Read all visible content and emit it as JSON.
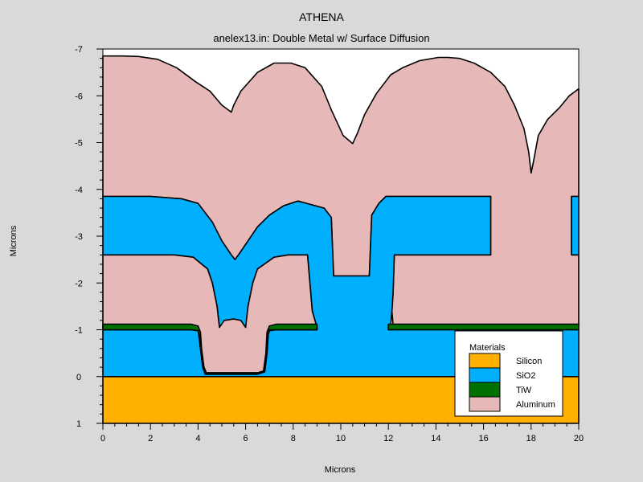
{
  "chart_data": {
    "type": "area",
    "title": "ATHENA",
    "subtitle": "anelex13.in: Double Metal w/ Surface Diffusion",
    "xlabel": "Microns",
    "ylabel": "Microns",
    "xlim": [
      0,
      20
    ],
    "ylim": [
      1,
      -7
    ],
    "y_axis_inverted": true,
    "x_ticks": [
      0,
      2,
      4,
      6,
      8,
      10,
      12,
      14,
      16,
      18,
      20
    ],
    "y_ticks": [
      1,
      0,
      -1,
      -2,
      -3,
      -4,
      -5,
      -6,
      -7
    ],
    "legend": {
      "title": "Materials",
      "position": "bottom-right",
      "entries": [
        {
          "label": "Silicon",
          "color": "#ffb000"
        },
        {
          "label": "SiO2",
          "color": "#00b0ff"
        },
        {
          "label": "TiW",
          "color": "#007000"
        },
        {
          "label": "Aluminum",
          "color": "#e6b8b8"
        }
      ]
    },
    "regions": [
      {
        "material": "Aluminum",
        "note": "Top Al layer (upper surface profile)",
        "polygon": [
          [
            0,
            -6.85
          ],
          [
            0.8,
            -6.85
          ],
          [
            1.5,
            -6.84
          ],
          [
            2.3,
            -6.78
          ],
          [
            3.1,
            -6.6
          ],
          [
            3.9,
            -6.3
          ],
          [
            4.5,
            -6.1
          ],
          [
            5.0,
            -5.8
          ],
          [
            5.4,
            -5.65
          ],
          [
            5.5,
            -5.8
          ],
          [
            5.8,
            -6.1
          ],
          [
            6.5,
            -6.5
          ],
          [
            7.2,
            -6.7
          ],
          [
            7.9,
            -6.7
          ],
          [
            8.5,
            -6.6
          ],
          [
            9.2,
            -6.2
          ],
          [
            9.6,
            -5.7
          ],
          [
            10.1,
            -5.15
          ],
          [
            10.5,
            -4.98
          ],
          [
            10.7,
            -5.2
          ],
          [
            11.0,
            -5.6
          ],
          [
            11.5,
            -6.05
          ],
          [
            12.1,
            -6.45
          ],
          [
            12.6,
            -6.6
          ],
          [
            13.3,
            -6.75
          ],
          [
            14.1,
            -6.82
          ],
          [
            14.5,
            -6.82
          ],
          [
            15.0,
            -6.8
          ],
          [
            15.6,
            -6.7
          ],
          [
            16.3,
            -6.5
          ],
          [
            16.9,
            -6.2
          ],
          [
            17.3,
            -5.8
          ],
          [
            17.7,
            -5.3
          ],
          [
            17.9,
            -4.8
          ],
          [
            18.0,
            -4.35
          ],
          [
            18.1,
            -4.6
          ],
          [
            18.3,
            -5.15
          ],
          [
            18.7,
            -5.5
          ],
          [
            19.2,
            -5.75
          ],
          [
            19.6,
            -6.0
          ],
          [
            20.0,
            -6.15
          ],
          [
            20,
            -3.85
          ],
          [
            19.7,
            -3.85
          ],
          [
            19.7,
            -2.6
          ],
          [
            20,
            -2.6
          ],
          [
            20,
            -1.1
          ],
          [
            12.2,
            -1.1
          ],
          [
            12.15,
            -1.4
          ],
          [
            12.2,
            -1.8
          ],
          [
            12.25,
            -2.6
          ],
          [
            12.3,
            -2.6
          ],
          [
            16.3,
            -2.6
          ],
          [
            16.3,
            -3.85
          ],
          [
            11.9,
            -3.85
          ],
          [
            11.6,
            -3.7
          ],
          [
            11.3,
            -3.45
          ],
          [
            11.2,
            -2.15
          ],
          [
            10.2,
            -2.15
          ],
          [
            9.7,
            -2.15
          ],
          [
            9.6,
            -3.4
          ],
          [
            9.3,
            -3.6
          ],
          [
            8.2,
            -3.75
          ],
          [
            7.6,
            -3.65
          ],
          [
            7.0,
            -3.45
          ],
          [
            6.5,
            -3.2
          ],
          [
            6.1,
            -2.9
          ],
          [
            5.7,
            -2.6
          ],
          [
            5.55,
            -2.5
          ],
          [
            5.4,
            -2.6
          ],
          [
            5.0,
            -2.9
          ],
          [
            4.6,
            -3.3
          ],
          [
            4.0,
            -3.7
          ],
          [
            3.3,
            -3.8
          ],
          [
            2.0,
            -3.85
          ],
          [
            0,
            -3.85
          ]
        ]
      },
      {
        "material": "SiO2",
        "note": "Upper oxide layer",
        "polygon": [
          [
            0,
            -3.85
          ],
          [
            2.0,
            -3.85
          ],
          [
            3.3,
            -3.8
          ],
          [
            4.0,
            -3.7
          ],
          [
            4.6,
            -3.3
          ],
          [
            5.0,
            -2.9
          ],
          [
            5.4,
            -2.6
          ],
          [
            5.55,
            -2.5
          ],
          [
            5.7,
            -2.6
          ],
          [
            6.1,
            -2.9
          ],
          [
            6.5,
            -3.2
          ],
          [
            7.0,
            -3.45
          ],
          [
            7.6,
            -3.65
          ],
          [
            8.2,
            -3.75
          ],
          [
            9.3,
            -3.6
          ],
          [
            9.6,
            -3.4
          ],
          [
            9.7,
            -2.15
          ],
          [
            10.2,
            -2.15
          ],
          [
            11.2,
            -2.15
          ],
          [
            11.3,
            -3.45
          ],
          [
            11.6,
            -3.7
          ],
          [
            11.9,
            -3.85
          ],
          [
            16.3,
            -3.85
          ],
          [
            16.3,
            -2.6
          ],
          [
            12.3,
            -2.6
          ],
          [
            12.25,
            -2.6
          ],
          [
            12.2,
            -1.8
          ],
          [
            12.15,
            -1.4
          ],
          [
            12.1,
            -1.1
          ],
          [
            12.0,
            -1.05
          ],
          [
            12.0,
            -1.0
          ],
          [
            20,
            -1.0
          ],
          [
            20,
            0
          ],
          [
            0,
            0
          ],
          [
            0,
            -1.0
          ],
          [
            3.7,
            -1.0
          ],
          [
            4.0,
            -0.98
          ],
          [
            4.05,
            -0.9
          ],
          [
            4.1,
            -0.6
          ],
          [
            4.2,
            -0.2
          ],
          [
            4.3,
            -0.05
          ],
          [
            5.0,
            -0.05
          ],
          [
            6.5,
            -0.05
          ],
          [
            6.8,
            -0.1
          ],
          [
            6.9,
            -0.5
          ],
          [
            6.95,
            -0.9
          ],
          [
            7.0,
            -0.98
          ],
          [
            7.3,
            -1.0
          ],
          [
            9.0,
            -1.0
          ],
          [
            9.0,
            -1.05
          ],
          [
            8.8,
            -1.4
          ],
          [
            8.6,
            -2.6
          ],
          [
            7.8,
            -2.6
          ],
          [
            7.2,
            -2.55
          ],
          [
            6.5,
            -2.3
          ],
          [
            6.3,
            -2.0
          ],
          [
            6.1,
            -1.5
          ],
          [
            6.0,
            -1.05
          ],
          [
            5.8,
            -1.2
          ],
          [
            5.5,
            -1.23
          ],
          [
            5.1,
            -1.2
          ],
          [
            4.9,
            -1.05
          ],
          [
            4.8,
            -1.5
          ],
          [
            4.6,
            -2.0
          ],
          [
            4.4,
            -2.3
          ],
          [
            3.8,
            -2.55
          ],
          [
            3.0,
            -2.6
          ],
          [
            0,
            -2.6
          ]
        ]
      },
      {
        "material": "SiO2",
        "note": "Right edge oxide strip",
        "polygon": [
          [
            19.7,
            -3.85
          ],
          [
            20,
            -3.85
          ],
          [
            20,
            -2.6
          ],
          [
            19.7,
            -2.6
          ]
        ]
      },
      {
        "material": "Aluminum",
        "note": "Lower Al (first metal) layer",
        "polygon": [
          [
            0,
            -2.6
          ],
          [
            3.0,
            -2.6
          ],
          [
            3.8,
            -2.55
          ],
          [
            4.4,
            -2.3
          ],
          [
            4.6,
            -2.0
          ],
          [
            4.8,
            -1.5
          ],
          [
            4.9,
            -1.05
          ],
          [
            5.1,
            -1.2
          ],
          [
            5.5,
            -1.23
          ],
          [
            5.8,
            -1.2
          ],
          [
            6.0,
            -1.05
          ],
          [
            6.1,
            -1.5
          ],
          [
            6.3,
            -2.0
          ],
          [
            6.5,
            -2.3
          ],
          [
            7.2,
            -2.55
          ],
          [
            7.8,
            -2.6
          ],
          [
            8.6,
            -2.6
          ],
          [
            8.8,
            -1.4
          ],
          [
            9.0,
            -1.05
          ],
          [
            9.0,
            -1.0
          ],
          [
            7.0,
            -1.0
          ],
          [
            6.95,
            -1.0
          ],
          [
            6.9,
            -0.55
          ],
          [
            6.8,
            -0.12
          ],
          [
            6.5,
            -0.08
          ],
          [
            5.0,
            -0.08
          ],
          [
            4.3,
            -0.08
          ],
          [
            4.2,
            -0.2
          ],
          [
            4.1,
            -0.6
          ],
          [
            4.0,
            -1.0
          ],
          [
            0,
            -1.0
          ]
        ]
      },
      {
        "material": "TiW",
        "note": "TiW barrier under first metal",
        "polygon": [
          [
            0,
            -1.12
          ],
          [
            3.7,
            -1.12
          ],
          [
            4.0,
            -1.08
          ],
          [
            4.1,
            -0.95
          ],
          [
            4.15,
            -0.6
          ],
          [
            4.25,
            -0.2
          ],
          [
            4.35,
            -0.08
          ],
          [
            5.0,
            -0.08
          ],
          [
            6.5,
            -0.08
          ],
          [
            6.75,
            -0.12
          ],
          [
            6.85,
            -0.5
          ],
          [
            6.9,
            -0.95
          ],
          [
            7.0,
            -1.08
          ],
          [
            7.3,
            -1.12
          ],
          [
            9.0,
            -1.12
          ],
          [
            9.0,
            -1.0
          ],
          [
            7.0,
            -1.0
          ],
          [
            6.95,
            -0.9
          ],
          [
            6.9,
            -0.5
          ],
          [
            6.8,
            -0.1
          ],
          [
            6.5,
            -0.05
          ],
          [
            5.0,
            -0.05
          ],
          [
            4.3,
            -0.05
          ],
          [
            4.2,
            -0.2
          ],
          [
            4.1,
            -0.6
          ],
          [
            4.05,
            -0.9
          ],
          [
            4.0,
            -0.98
          ],
          [
            3.7,
            -1.0
          ],
          [
            0,
            -1.0
          ]
        ]
      },
      {
        "material": "TiW",
        "note": "TiW barrier right side",
        "polygon": [
          [
            12.0,
            -1.12
          ],
          [
            20,
            -1.12
          ],
          [
            20,
            -1.0
          ],
          [
            12.0,
            -1.0
          ]
        ]
      },
      {
        "material": "Silicon",
        "note": "Substrate",
        "polygon": [
          [
            0,
            0
          ],
          [
            20,
            0
          ],
          [
            20,
            1
          ],
          [
            0,
            1
          ]
        ]
      }
    ]
  }
}
